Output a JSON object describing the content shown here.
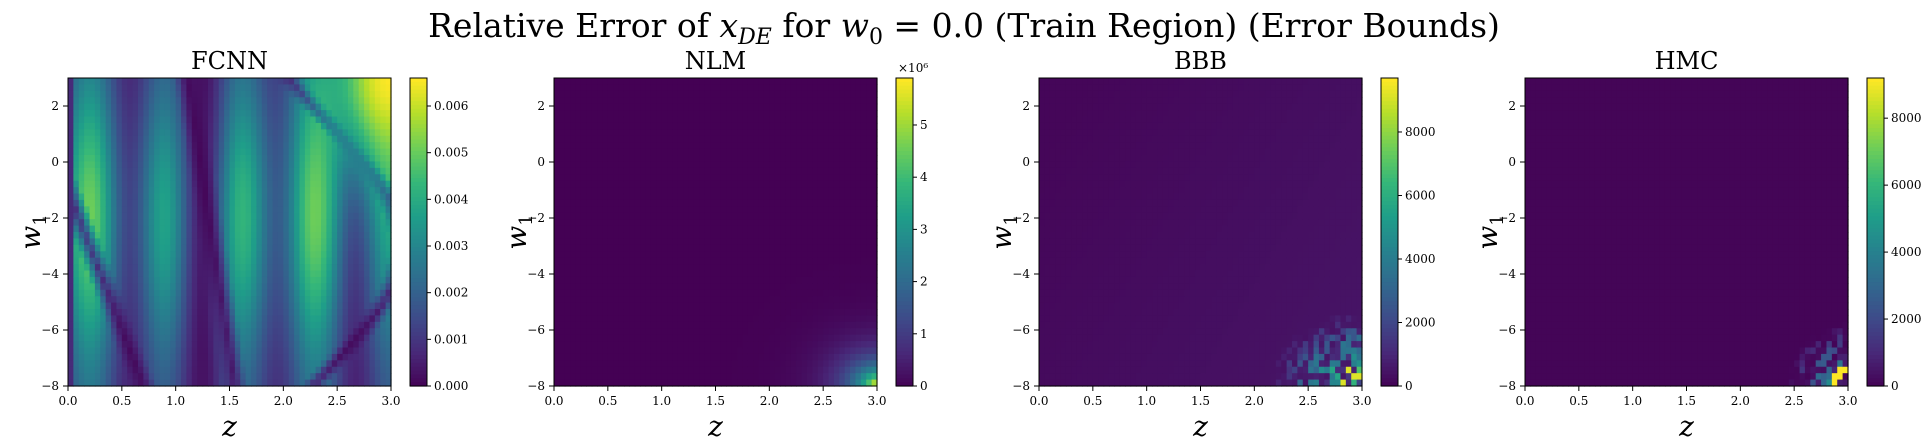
{
  "figure": {
    "title_pre": "Relative Error of ",
    "title_sym1": "x",
    "title_sub1": "DE",
    "title_mid": " for ",
    "title_sym2": "w",
    "title_sub2": "0",
    "title_post": " = 0.0 (Train Region) (Error Bounds)"
  },
  "chart_data": [
    {
      "type": "heatmap",
      "title": "FCNN",
      "xlabel": "z",
      "ylabel_sym": "w",
      "ylabel_sub": "1",
      "xlim": [
        0.0,
        3.0
      ],
      "ylim": [
        -8,
        3
      ],
      "x_ticks": [
        "0.0",
        "0.5",
        "1.0",
        "1.5",
        "2.0",
        "2.5",
        "3.0"
      ],
      "y_ticks": [
        "2",
        "0",
        "−2",
        "−4",
        "−6",
        "−8"
      ],
      "colorbar_ticks": [
        "0.000",
        "0.001",
        "0.002",
        "0.003",
        "0.004",
        "0.005",
        "0.006"
      ],
      "colorbar_range": [
        0.0,
        0.0066
      ],
      "colorbar_multiplier": "",
      "colormap": "viridis",
      "pattern": "vertical bands with curved low-error ridge"
    },
    {
      "type": "heatmap",
      "title": "NLM",
      "xlabel": "z",
      "ylabel_sym": "w",
      "ylabel_sub": "1",
      "xlim": [
        0.0,
        3.0
      ],
      "ylim": [
        -8,
        3
      ],
      "x_ticks": [
        "0.0",
        "0.5",
        "1.0",
        "1.5",
        "2.0",
        "2.5",
        "3.0"
      ],
      "y_ticks": [
        "2",
        "0",
        "−2",
        "−4",
        "−6",
        "−8"
      ],
      "colorbar_ticks": [
        "0",
        "1",
        "2",
        "3",
        "4",
        "5"
      ],
      "colorbar_range": [
        0,
        5.9
      ],
      "colorbar_multiplier": "×10⁶",
      "colormap": "viridis",
      "pattern": "near zero except hot corner at z=3, w1=-8"
    },
    {
      "type": "heatmap",
      "title": "BBB",
      "xlabel": "z",
      "ylabel_sym": "w",
      "ylabel_sub": "1",
      "xlim": [
        0.0,
        3.0
      ],
      "ylim": [
        -8,
        3
      ],
      "x_ticks": [
        "0.0",
        "0.5",
        "1.0",
        "1.5",
        "2.0",
        "2.5",
        "3.0"
      ],
      "y_ticks": [
        "2",
        "0",
        "−2",
        "−4",
        "−6",
        "−8"
      ],
      "colorbar_ticks": [
        "0",
        "2000",
        "4000",
        "6000",
        "8000"
      ],
      "colorbar_range": [
        0,
        9700
      ],
      "colorbar_multiplier": "",
      "colormap": "viridis",
      "pattern": "near zero except noisy cells near z=2.5-3, w1=-6 to -8"
    },
    {
      "type": "heatmap",
      "title": "HMC",
      "xlabel": "z",
      "ylabel_sym": "w",
      "ylabel_sub": "1",
      "xlim": [
        0.0,
        3.0
      ],
      "ylim": [
        -8,
        3
      ],
      "x_ticks": [
        "0.0",
        "0.5",
        "1.0",
        "1.5",
        "2.0",
        "2.5",
        "3.0"
      ],
      "y_ticks": [
        "2",
        "0",
        "−2",
        "−4",
        "−6",
        "−8"
      ],
      "colorbar_ticks": [
        "0",
        "2000",
        "4000",
        "6000",
        "8000"
      ],
      "colorbar_range": [
        0,
        9200
      ],
      "colorbar_multiplier": "",
      "colormap": "viridis",
      "pattern": "near zero except noisy cells near z=2.6-3, w1=-6.5 to -8"
    }
  ]
}
